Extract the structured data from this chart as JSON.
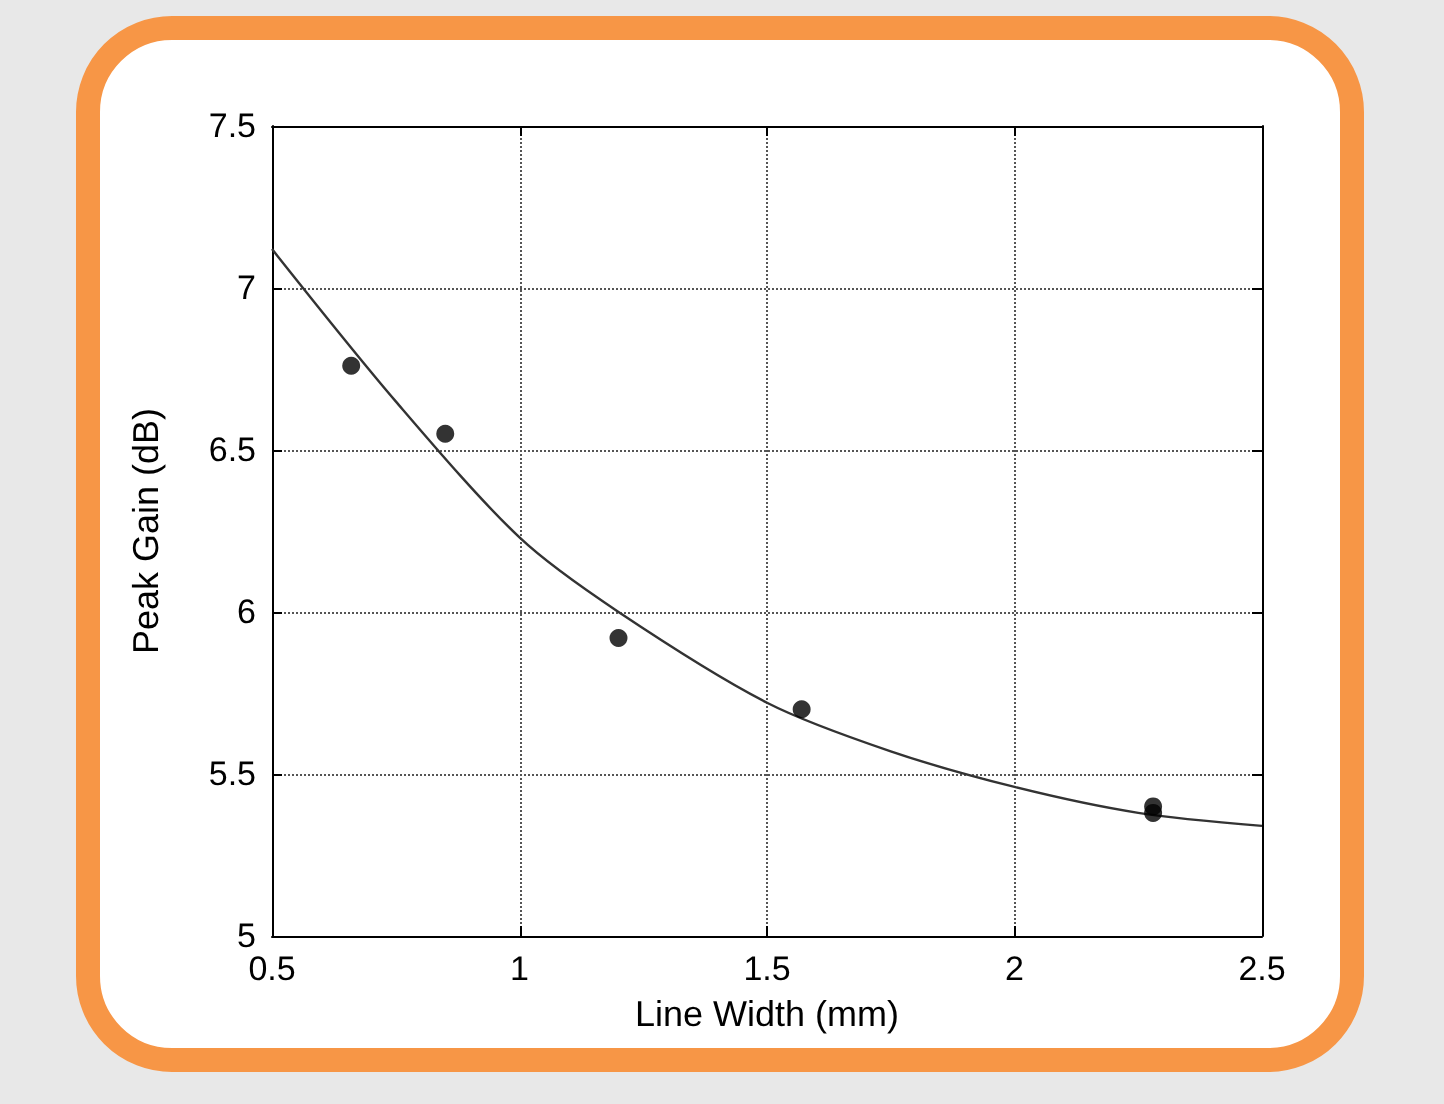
{
  "chart_data": {
    "type": "scatter",
    "xlabel": "Line Width (mm)",
    "ylabel": "Peak Gain (dB)",
    "xlim": [
      0.5,
      2.5
    ],
    "xticks": [
      0.5,
      1,
      1.5,
      2,
      2.5
    ],
    "ylim": [
      5,
      7.5
    ],
    "yticks": [
      5,
      5.5,
      6,
      6.5,
      7,
      7.5
    ],
    "grid": true,
    "marker": "circle",
    "series": [
      {
        "color": "#000000",
        "x": [
          0.66,
          0.85,
          1.2,
          1.57,
          2.28,
          2.28
        ],
        "values": [
          6.76,
          6.55,
          5.92,
          5.7,
          5.4,
          5.38
        ]
      },
      {
        "type": "line",
        "color": "#333333",
        "marker": "none",
        "line_style": "solid",
        "x": [
          0.5,
          0.75,
          1,
          1.2,
          1.5,
          1.75,
          2,
          2.25,
          2.5
        ],
        "values": [
          7.12,
          6.65,
          6.23,
          6.0,
          5.72,
          5.57,
          5.46,
          5.38,
          5.34
        ]
      }
    ]
  }
}
